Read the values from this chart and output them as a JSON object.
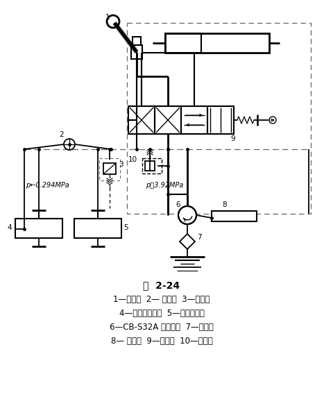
{
  "title": "图  2-24",
  "caption_lines": [
    "1—操纵叉  2— 散热器  3—安全阀",
    "4—润滑主离合器  5—润滑分动筱",
    "6—CB-S32A 齿轮油泵  7—滤油器",
    "8— 分动筱  9—助力阀  10—安全阀"
  ],
  "p1_label": "p←0.294MPa",
  "p2_label": "p＝3.92MPa",
  "bg_color": "#ffffff",
  "lc": "#000000",
  "dc": "#666666"
}
